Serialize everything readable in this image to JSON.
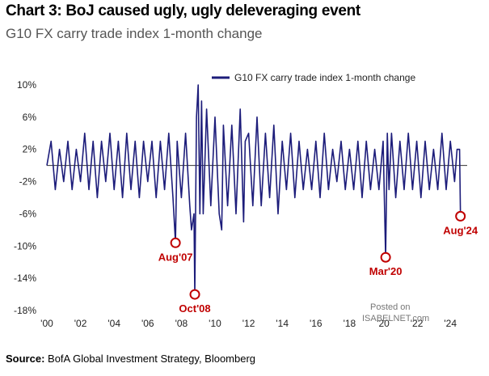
{
  "title": "Chart 3: BoJ caused ugly, ugly deleveraging event",
  "subtitle": "G10 FX carry trade index 1-month change",
  "source_label": "Source:",
  "source_text": "BofA Global Investment Strategy, Bloomberg",
  "watermark_line1": "Posted on",
  "watermark_line2": "ISABELNET.com",
  "chart_data": {
    "type": "line",
    "ylim": [
      -18,
      11
    ],
    "yticks": [
      -18,
      -14,
      -10,
      -6,
      -2,
      2,
      6,
      10
    ],
    "ytick_labels": [
      "-18%",
      "-14%",
      "-10%",
      "-6%",
      "-2%",
      "2%",
      "6%",
      "10%"
    ],
    "xlim": [
      2000.0,
      2025.0
    ],
    "xticks": [
      2000,
      2002,
      2004,
      2006,
      2008,
      2010,
      2012,
      2014,
      2016,
      2018,
      2020,
      2022,
      2024
    ],
    "xtick_labels": [
      "'00",
      "'02",
      "'04",
      "'06",
      "'08",
      "'10",
      "'12",
      "'14",
      "'16",
      "'18",
      "'20",
      "'22",
      "'24"
    ],
    "legend": "top-right",
    "grid": false,
    "zero_line": true,
    "series": [
      {
        "name": "G10 FX carry trade index 1-month change",
        "color": "#1c1c7a",
        "x": [
          2000.0,
          2000.25,
          2000.5,
          2000.75,
          2001.0,
          2001.25,
          2001.5,
          2001.75,
          2002.0,
          2002.25,
          2002.5,
          2002.75,
          2003.0,
          2003.25,
          2003.5,
          2003.75,
          2004.0,
          2004.25,
          2004.5,
          2004.75,
          2005.0,
          2005.25,
          2005.5,
          2005.75,
          2006.0,
          2006.25,
          2006.5,
          2006.75,
          2007.0,
          2007.25,
          2007.5,
          2007.65,
          2007.75,
          2008.0,
          2008.25,
          2008.5,
          2008.6,
          2008.75,
          2008.8,
          2008.9,
          2009.0,
          2009.1,
          2009.2,
          2009.3,
          2009.5,
          2009.75,
          2010.0,
          2010.25,
          2010.4,
          2010.5,
          2010.75,
          2011.0,
          2011.25,
          2011.5,
          2011.7,
          2011.8,
          2012.0,
          2012.25,
          2012.5,
          2012.75,
          2013.0,
          2013.25,
          2013.5,
          2013.75,
          2014.0,
          2014.25,
          2014.5,
          2014.75,
          2015.0,
          2015.25,
          2015.5,
          2015.75,
          2016.0,
          2016.25,
          2016.5,
          2016.75,
          2017.0,
          2017.25,
          2017.5,
          2017.75,
          2018.0,
          2018.25,
          2018.5,
          2018.75,
          2019.0,
          2019.25,
          2019.5,
          2019.75,
          2020.0,
          2020.15,
          2020.25,
          2020.35,
          2020.5,
          2020.75,
          2021.0,
          2021.25,
          2021.5,
          2021.75,
          2022.0,
          2022.25,
          2022.5,
          2022.75,
          2023.0,
          2023.25,
          2023.5,
          2023.75,
          2024.0,
          2024.25,
          2024.4,
          2024.55,
          2024.6
        ],
        "y": [
          0,
          3,
          -3,
          2,
          -2,
          3,
          -3,
          2,
          -2,
          4,
          -3,
          3,
          -4,
          3,
          -2,
          4,
          -3,
          3,
          -4,
          4,
          -3,
          3,
          -4,
          3,
          -2,
          3,
          -4,
          3,
          -3,
          4,
          -4,
          -9.6,
          3,
          -4,
          4,
          -5,
          -8,
          -6,
          -16,
          6,
          10,
          -6,
          8,
          -6,
          7,
          -5,
          6,
          -6,
          -8,
          5,
          -5,
          5,
          -6,
          7,
          -7,
          3,
          4,
          -5,
          6,
          -5,
          4,
          -4,
          5,
          -6,
          3,
          -3,
          4,
          -4,
          3,
          -3,
          2,
          -3,
          3,
          -4,
          4,
          -3,
          2,
          -2,
          3,
          -3,
          2,
          -3,
          3,
          -4,
          3,
          -3,
          2,
          -3,
          3,
          -11.4,
          4,
          -3,
          4,
          -4,
          3,
          -3,
          4,
          -3,
          3,
          -4,
          3,
          -3,
          2,
          -3,
          4,
          -3,
          3,
          -2,
          2,
          2,
          -6.3
        ]
      }
    ],
    "annotations": [
      {
        "label": "Aug'07",
        "x": 2007.65,
        "y": -9.6
      },
      {
        "label": "Oct'08",
        "x": 2008.8,
        "y": -16
      },
      {
        "label": "Mar'20",
        "x": 2020.15,
        "y": -11.4
      },
      {
        "label": "Aug'24",
        "x": 2024.6,
        "y": -6.3
      }
    ],
    "annotation_color": "#c00000"
  }
}
